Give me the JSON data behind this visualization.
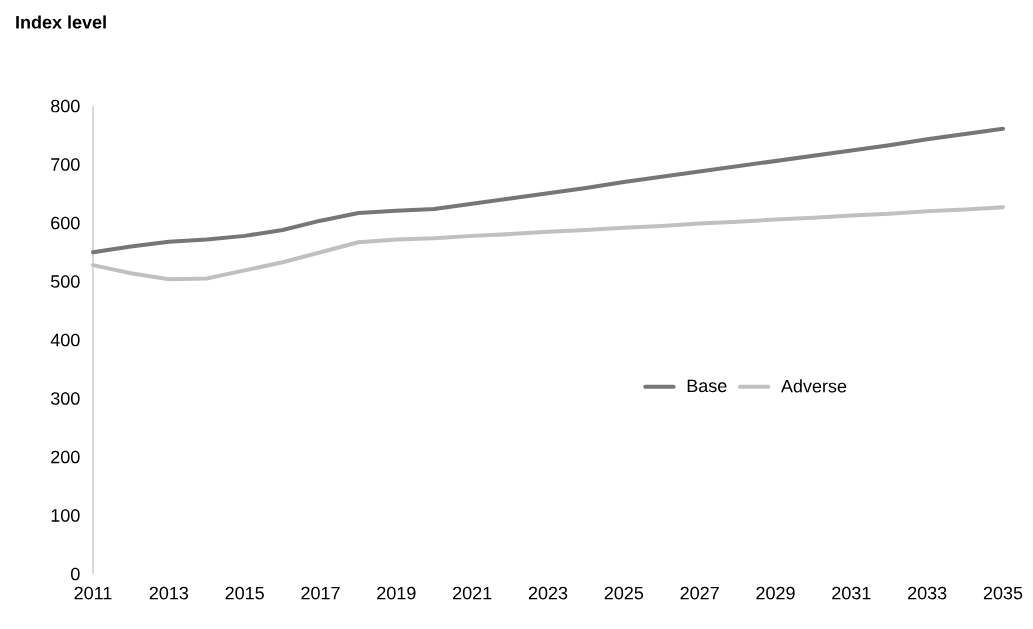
{
  "chart_data": {
    "type": "line",
    "ylabel": "Index level",
    "x": [
      2011,
      2012,
      2013,
      2014,
      2015,
      2016,
      2017,
      2018,
      2019,
      2020,
      2021,
      2022,
      2023,
      2024,
      2025,
      2026,
      2027,
      2028,
      2029,
      2030,
      2031,
      2032,
      2033,
      2034,
      2035
    ],
    "series": [
      {
        "name": "Base",
        "color": "#767676",
        "values": [
          550,
          560,
          568,
          572,
          578,
          588,
          604,
          617,
          621,
          624,
          633,
          642,
          651,
          660,
          670,
          679,
          688,
          697,
          706,
          715,
          724,
          733,
          743,
          752,
          761
        ]
      },
      {
        "name": "Adverse",
        "color": "#c0c0c0",
        "values": [
          528,
          514,
          504,
          505,
          519,
          533,
          550,
          567,
          572,
          574,
          578,
          581,
          585,
          588,
          592,
          595,
          599,
          602,
          606,
          609,
          613,
          616,
          620,
          623,
          627
        ]
      }
    ],
    "xlim": [
      2011,
      2035
    ],
    "xticks": [
      2011,
      2013,
      2015,
      2017,
      2019,
      2021,
      2023,
      2025,
      2027,
      2029,
      2031,
      2033,
      2035
    ],
    "ylim": [
      0,
      800
    ],
    "yticks": [
      0,
      100,
      200,
      300,
      400,
      500,
      600,
      700,
      800
    ],
    "legend": "right"
  }
}
